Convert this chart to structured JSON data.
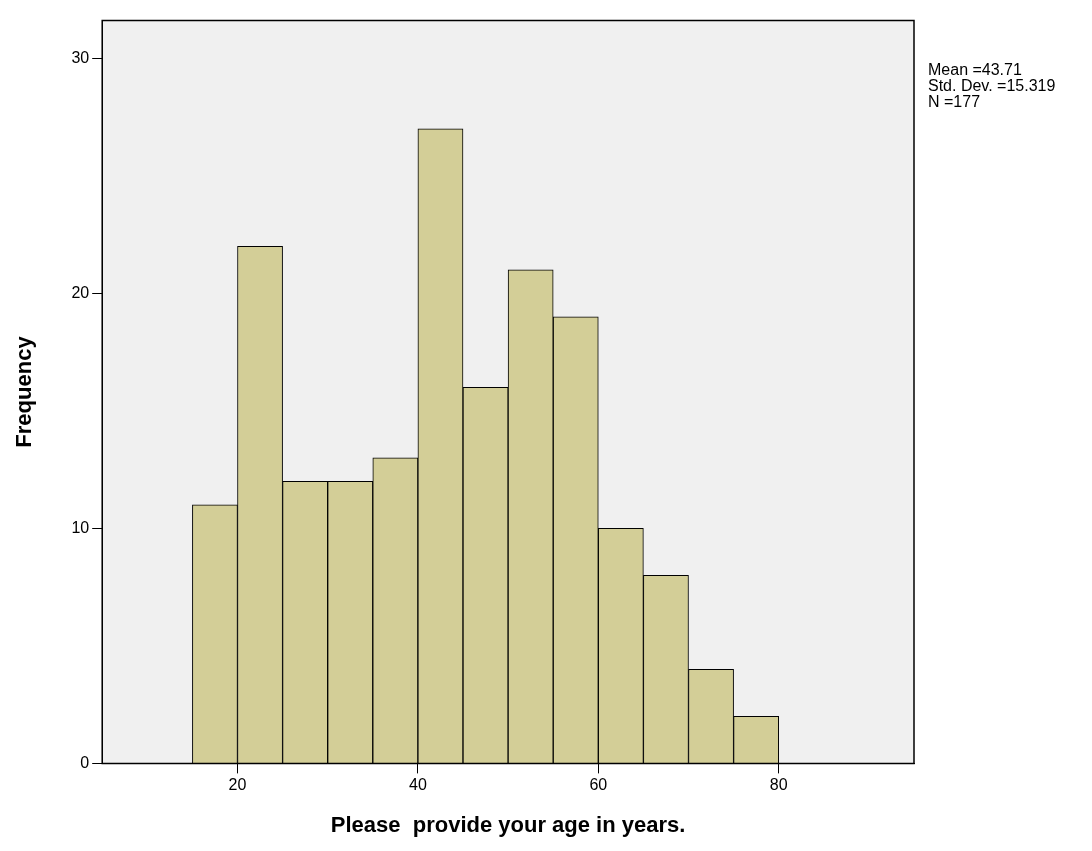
{
  "chart_data": {
    "type": "histogram",
    "xlabel": "Please  provide your age in years.",
    "ylabel": "Frequency",
    "bins": [
      15,
      20,
      25,
      30,
      35,
      40,
      45,
      50,
      55,
      60,
      65,
      70,
      75,
      80
    ],
    "values": [
      11,
      22,
      12,
      12,
      13,
      27,
      16,
      21,
      19,
      10,
      8,
      4,
      2
    ],
    "color": "#d3ce97",
    "xlim": [
      5,
      95
    ],
    "xticks": [
      20,
      40,
      60,
      80
    ],
    "ylim": [
      0,
      31.6
    ],
    "yticks": [
      0,
      10,
      20,
      30
    ],
    "annotations": [
      "Mean =43.71",
      "Std. Dev. =15.319",
      "N =177"
    ],
    "grid": false,
    "legend": false
  }
}
